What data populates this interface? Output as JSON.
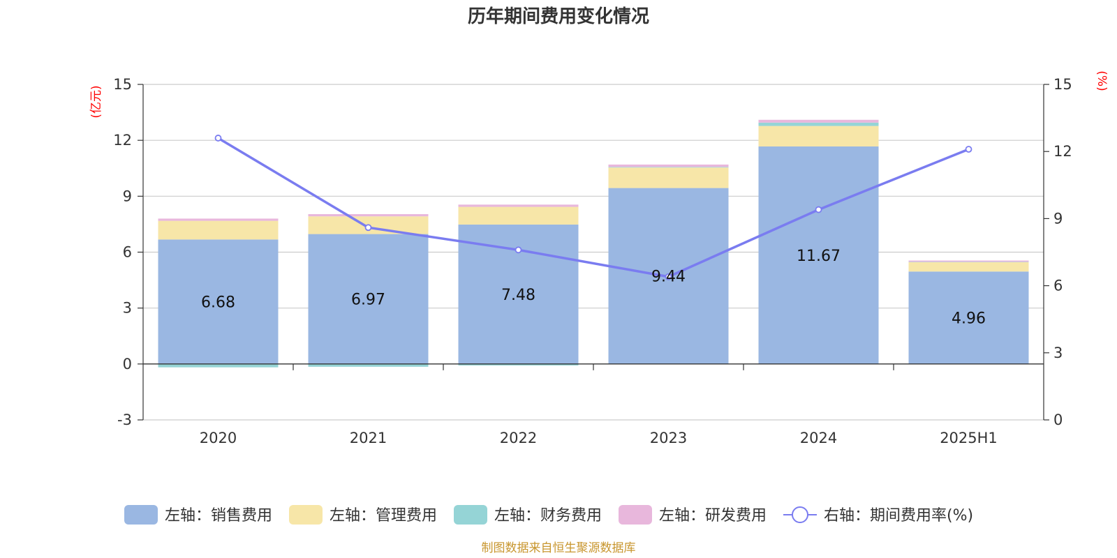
{
  "chart_data": {
    "type": "bar",
    "title": "历年期间费用变化情况",
    "categories": [
      "2020",
      "2021",
      "2022",
      "2023",
      "2024",
      "2025H1"
    ],
    "left_axis": {
      "unit": "(亿元)",
      "min": -3,
      "max": 15,
      "ticks": [
        "-3",
        "0",
        "3",
        "6",
        "9",
        "12",
        "15"
      ]
    },
    "right_axis": {
      "unit": "(%)",
      "min": 0,
      "max": 15,
      "ticks": [
        "0",
        "3",
        "6",
        "9",
        "12",
        "15"
      ]
    },
    "grid": true,
    "legend_position": "bottom",
    "series": [
      {
        "name": "左轴：销售费用",
        "axis": "left",
        "kind": "bar",
        "color": "#9ab7e2",
        "values": [
          6.68,
          6.97,
          7.48,
          9.44,
          11.67,
          4.96
        ],
        "labels": [
          "6.68",
          "6.97",
          "7.48",
          "9.44",
          "11.67",
          "4.96"
        ]
      },
      {
        "name": "左轴：管理费用",
        "axis": "left",
        "kind": "bar",
        "color": "#f7e6a8",
        "values": [
          1.0,
          0.95,
          0.95,
          1.1,
          1.1,
          0.5
        ]
      },
      {
        "name": "左轴：财务费用",
        "axis": "left",
        "kind": "bar",
        "color": "#95d4d6",
        "values": [
          -0.18,
          -0.15,
          -0.08,
          0.03,
          0.18,
          0.02
        ]
      },
      {
        "name": "左轴：研发费用",
        "axis": "left",
        "kind": "bar",
        "color": "#e8b7dc",
        "values": [
          0.12,
          0.12,
          0.12,
          0.13,
          0.15,
          0.07
        ]
      },
      {
        "name": "右轴：期间费用率(%)",
        "axis": "right",
        "kind": "line",
        "color": "#7a7cf0",
        "values": [
          12.6,
          8.6,
          7.6,
          6.4,
          9.4,
          12.1
        ]
      }
    ],
    "source": "制图数据来自恒生聚源数据库"
  }
}
